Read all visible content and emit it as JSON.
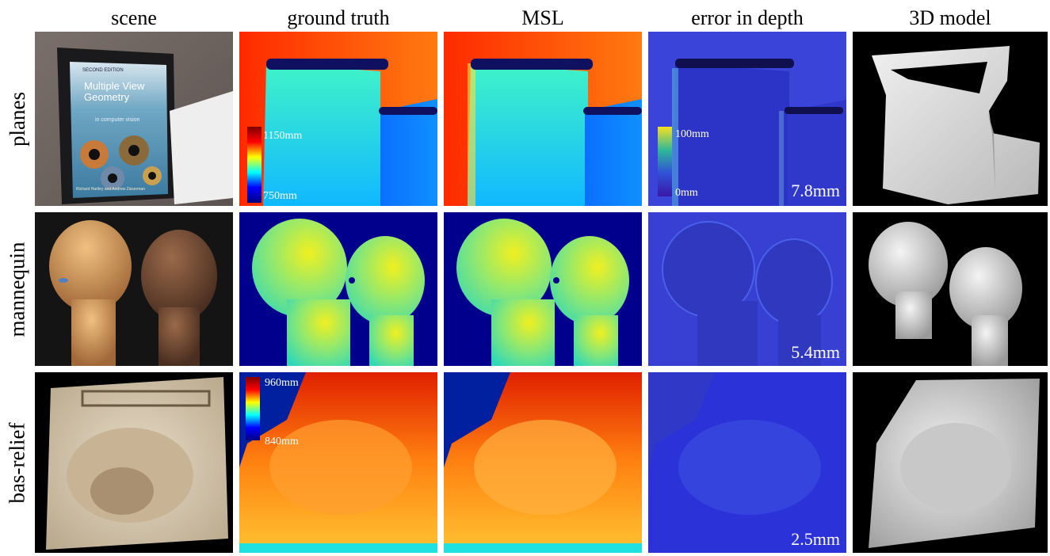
{
  "columns": [
    "scene",
    "ground truth",
    "MSL",
    "error in depth",
    "3D model"
  ],
  "rows": [
    "planes",
    "mannequin",
    "bas-relief"
  ],
  "planes": {
    "book_title": "Multiple View Geometry",
    "book_subtitle": "in computer vision",
    "book_edition": "SECOND EDITION",
    "book_authors": "Richard Hartley and Andrew Zisserman",
    "depth_max": "1150mm",
    "depth_min": "750mm",
    "error_max": "100mm",
    "error_min": "0mm",
    "mean_error": "7.8mm"
  },
  "mannequin": {
    "mean_error": "5.4mm"
  },
  "bas_relief": {
    "depth_max": "960mm",
    "depth_min": "840mm",
    "mean_error": "2.5mm"
  },
  "colors": {
    "jet_background": "#000090",
    "error_background": "#2a32d8",
    "depth_face": "#7fe08a"
  }
}
